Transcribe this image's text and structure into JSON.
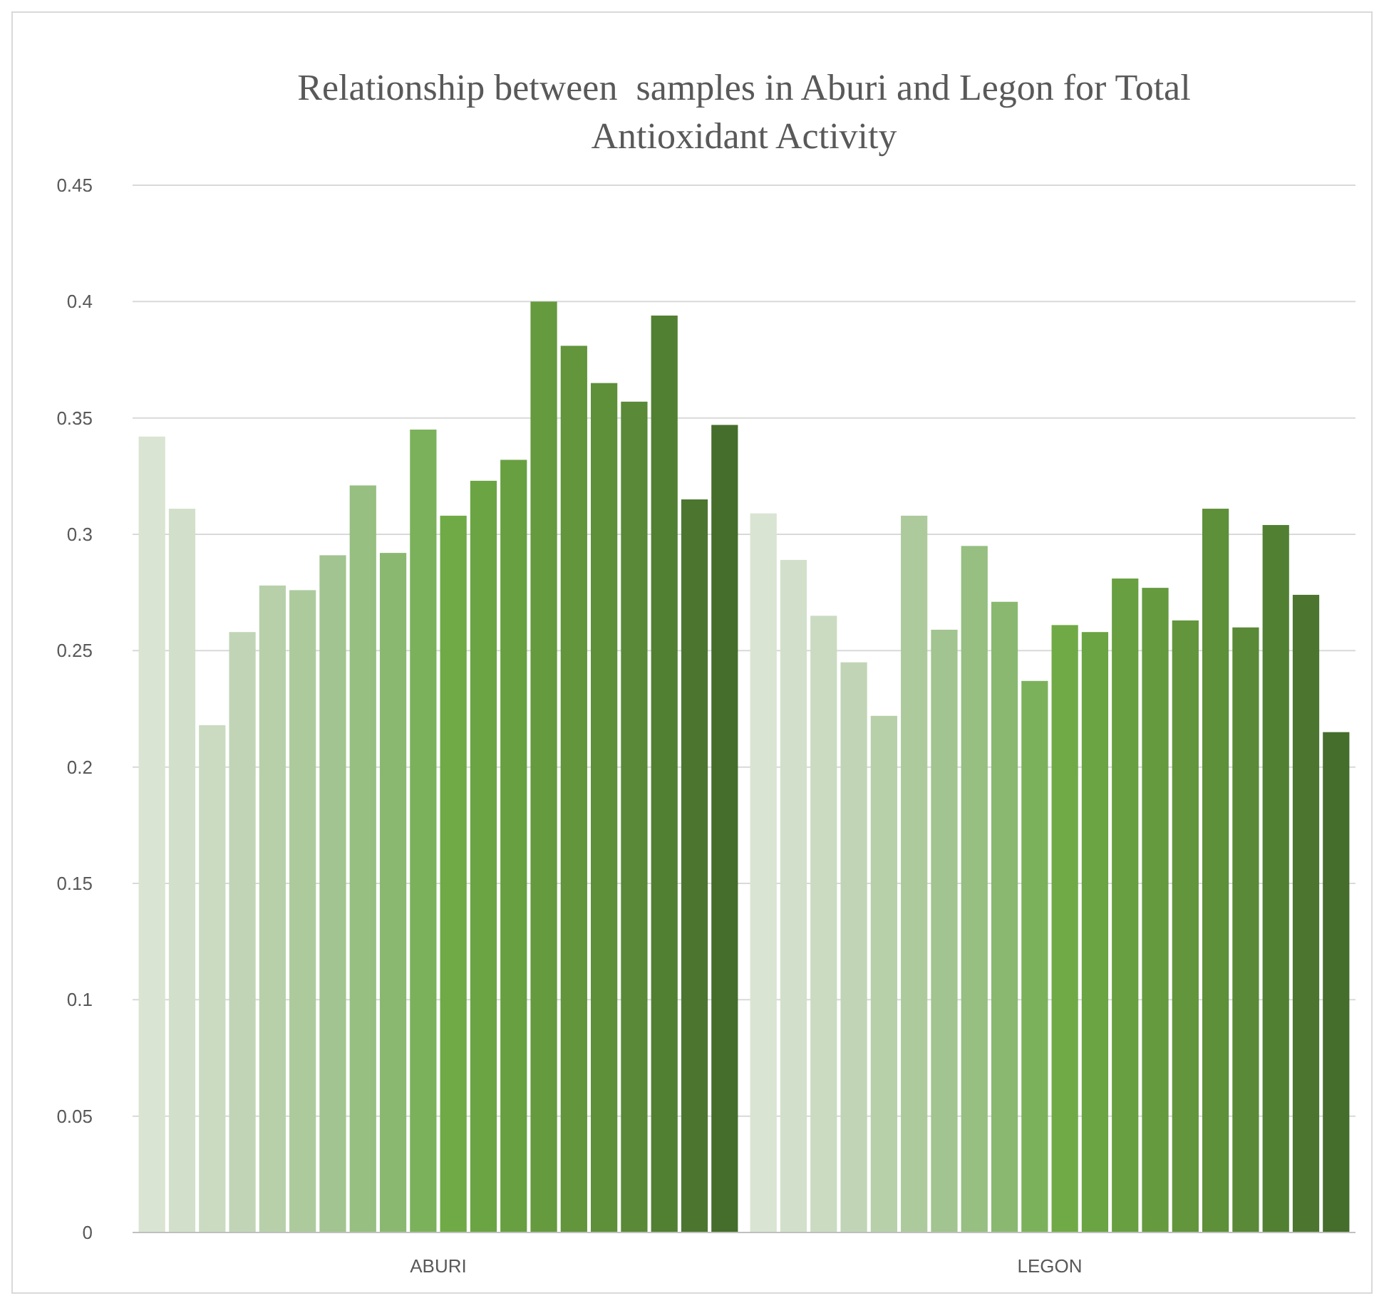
{
  "chart_data": {
    "type": "bar",
    "title": "Relationship between  samples in Aburi and Legon for Total Antioxidant Activity",
    "categories": [
      "ABURI",
      "LEGON"
    ],
    "ylim": [
      0,
      0.45
    ],
    "yticks": [
      0,
      0.05,
      0.1,
      0.15,
      0.2,
      0.25,
      0.3,
      0.35,
      0.4,
      0.45
    ],
    "grid": "y",
    "series": [
      {
        "color": "#d9e4d3",
        "values": [
          0.342,
          0.309
        ]
      },
      {
        "color": "#d2e0cb",
        "values": [
          0.311,
          0.289
        ]
      },
      {
        "color": "#cadbc2",
        "values": [
          0.218,
          0.265
        ]
      },
      {
        "color": "#c1d5b6",
        "values": [
          0.258,
          0.245
        ]
      },
      {
        "color": "#b7d0aa",
        "values": [
          0.278,
          0.222
        ]
      },
      {
        "color": "#adca9d",
        "values": [
          0.276,
          0.308
        ]
      },
      {
        "color": "#a2c490",
        "values": [
          0.291,
          0.259
        ]
      },
      {
        "color": "#96bf81",
        "values": [
          0.321,
          0.295
        ]
      },
      {
        "color": "#8ab870",
        "values": [
          0.292,
          0.271
        ]
      },
      {
        "color": "#7cb15b",
        "values": [
          0.345,
          0.237
        ]
      },
      {
        "color": "#70aa46",
        "values": [
          0.308,
          0.261
        ]
      },
      {
        "color": "#6ba443",
        "values": [
          0.323,
          0.258
        ]
      },
      {
        "color": "#689f41",
        "values": [
          0.332,
          0.281
        ]
      },
      {
        "color": "#659a3e",
        "values": [
          0.4,
          0.277
        ]
      },
      {
        "color": "#62953c",
        "values": [
          0.381,
          0.263
        ]
      },
      {
        "color": "#5e8f39",
        "values": [
          0.365,
          0.311
        ]
      },
      {
        "color": "#5a8937",
        "values": [
          0.357,
          0.26
        ]
      },
      {
        "color": "#528033",
        "values": [
          0.394,
          0.304
        ]
      },
      {
        "color": "#4c7630",
        "values": [
          0.315,
          0.274
        ]
      },
      {
        "color": "#456d2c",
        "values": [
          0.347,
          0.215
        ]
      }
    ]
  }
}
